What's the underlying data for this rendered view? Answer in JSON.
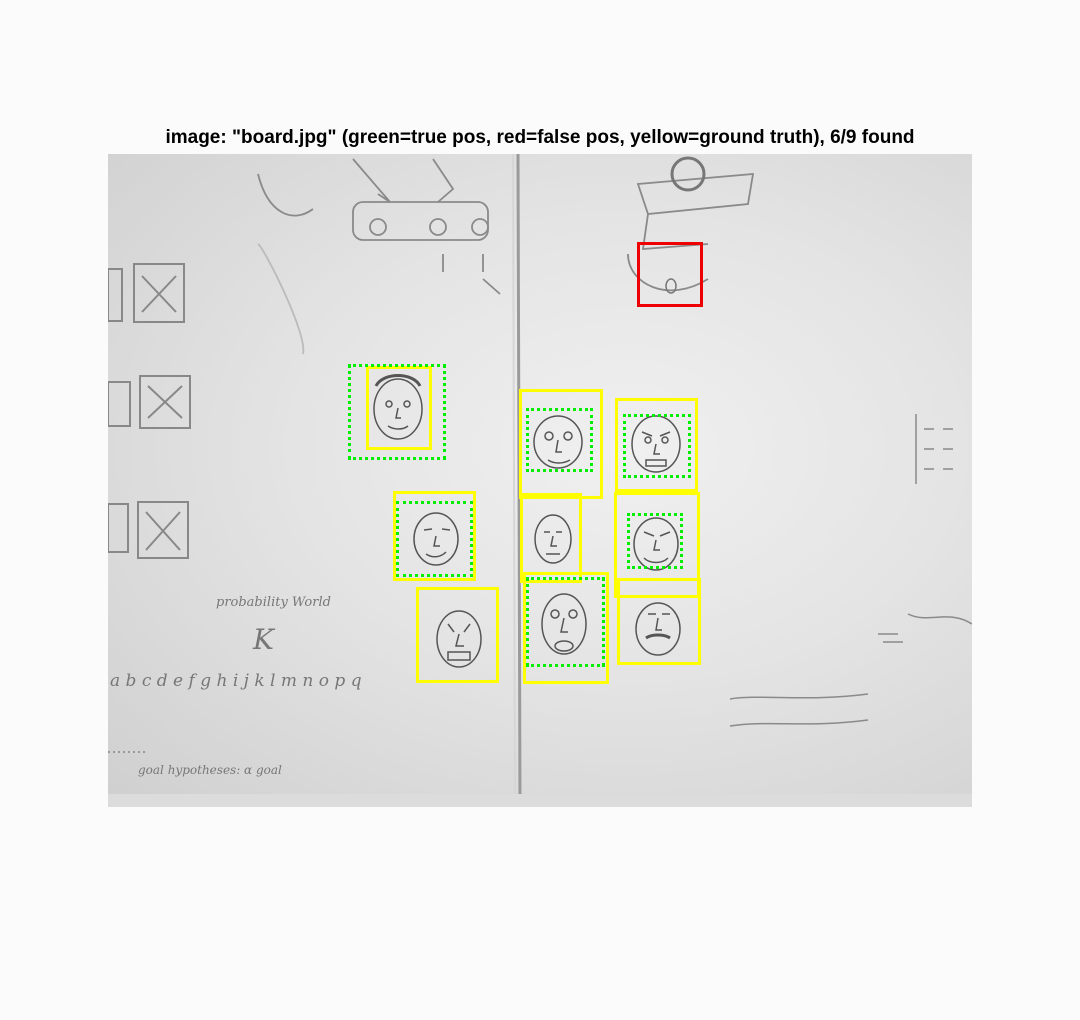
{
  "figure": {
    "title": "image: \"board.jpg\" (green=true pos, red=false pos, yellow=ground truth), 6/9 found",
    "colors": {
      "true_positive": "#00ee00",
      "false_positive": "#ee0000",
      "ground_truth": "#ffff00"
    }
  },
  "detections": {
    "ground_truth_count": 9,
    "found_count": 6,
    "true_positive_count": 6,
    "false_positive_count": 1
  },
  "board_text": {
    "probability": "probability World",
    "letter_k": "K",
    "alphabet": "a b c d e f g h i j k l m n o p q",
    "goal": "goal hypotheses: α goal"
  }
}
